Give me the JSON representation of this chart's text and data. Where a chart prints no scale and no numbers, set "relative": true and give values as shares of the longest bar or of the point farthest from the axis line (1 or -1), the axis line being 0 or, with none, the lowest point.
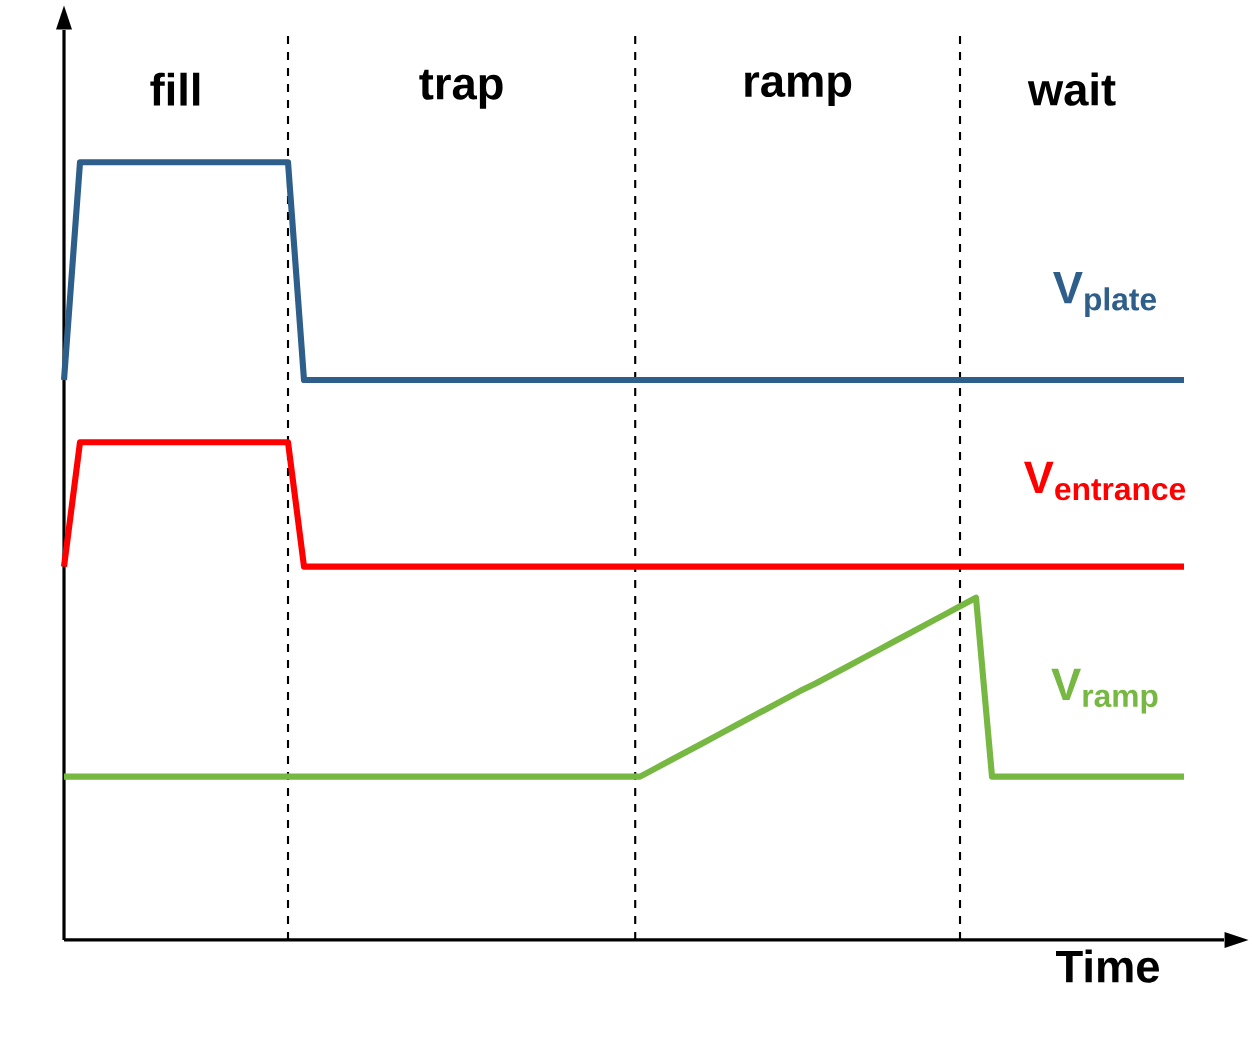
{
  "chart_data": {
    "type": "line",
    "relative": true,
    "xlabel": "Time",
    "categories": [
      null,
      null,
      null,
      null,
      null,
      null,
      null,
      null,
      null,
      null,
      null,
      null,
      null,
      null,
      null,
      null,
      null,
      null,
      null,
      null,
      null,
      null,
      null,
      null,
      null,
      null,
      null,
      null,
      null,
      null,
      null,
      null,
      null,
      null,
      null,
      null,
      null,
      null,
      null,
      null,
      null,
      null,
      null,
      null,
      null,
      null,
      null,
      null,
      null,
      null,
      null,
      null,
      null,
      null,
      null,
      null,
      null,
      null,
      null,
      null,
      null,
      null,
      null,
      null,
      null,
      null,
      null,
      null,
      null,
      null,
      null
    ],
    "series": [
      {
        "name": "V$_{plate}$",
        "color": "#2e5e8a",
        "values": [
          0.72,
          1,
          1,
          1,
          1,
          1,
          1,
          1,
          1,
          1,
          1,
          1,
          1,
          1,
          1,
          0.72,
          0.72,
          0.72,
          0.72,
          0.72,
          0.72,
          0.72,
          0.72,
          0.72,
          0.72,
          0.72,
          0.72,
          0.72,
          0.72,
          0.72,
          0.72,
          0.72,
          0.72,
          0.72,
          0.72,
          0.72,
          0.72,
          0.72,
          0.72,
          0.72,
          0.72,
          0.72,
          0.72,
          0.72,
          0.72,
          0.72,
          0.72,
          0.72,
          0.72,
          0.72,
          0.72,
          0.72,
          0.72,
          0.72,
          0.72,
          0.72,
          0.72,
          0.72,
          0.72,
          0.72,
          0.72,
          0.72,
          0.72,
          0.72,
          0.72,
          0.72,
          0.72,
          0.72,
          0.72,
          0.72,
          0.72
        ]
      },
      {
        "name": "V$_{entrance}$",
        "color": "#ff0000",
        "values": [
          0.48,
          0.64,
          0.64,
          0.64,
          0.64,
          0.64,
          0.64,
          0.64,
          0.64,
          0.64,
          0.64,
          0.64,
          0.64,
          0.64,
          0.64,
          0.48,
          0.48,
          0.48,
          0.48,
          0.48,
          0.48,
          0.48,
          0.48,
          0.48,
          0.48,
          0.48,
          0.48,
          0.48,
          0.48,
          0.48,
          0.48,
          0.48,
          0.48,
          0.48,
          0.48,
          0.48,
          0.48,
          0.48,
          0.48,
          0.48,
          0.48,
          0.48,
          0.48,
          0.48,
          0.48,
          0.48,
          0.48,
          0.48,
          0.48,
          0.48,
          0.48,
          0.48,
          0.48,
          0.48,
          0.48,
          0.48,
          0.48,
          0.48,
          0.48,
          0.48,
          0.48,
          0.48,
          0.48,
          0.48,
          0.48,
          0.48,
          0.48,
          0.48,
          0.48,
          0.48,
          0.48
        ]
      },
      {
        "name": "V$_{ramp}$",
        "color": "#77b843",
        "values": [
          0.21,
          0.21,
          0.21,
          0.21,
          0.21,
          0.21,
          0.21,
          0.21,
          0.21,
          0.21,
          0.21,
          0.21,
          0.21,
          0.21,
          0.21,
          0.21,
          0.21,
          0.21,
          0.21,
          0.21,
          0.21,
          0.21,
          0.21,
          0.21,
          0.21,
          0.21,
          0.21,
          0.21,
          0.21,
          0.21,
          0.21,
          0.21,
          0.21,
          0.21,
          0.21,
          0.21,
          0.21,
          0.221,
          0.232,
          0.243,
          0.254,
          0.265,
          0.276,
          0.287,
          0.298,
          0.309,
          0.32,
          0.33,
          0.341,
          0.352,
          0.363,
          0.374,
          0.385,
          0.396,
          0.407,
          0.418,
          0.429,
          0.44,
          0.21,
          0.21,
          0.21,
          0.21,
          0.21,
          0.21,
          0.21,
          0.21,
          0.21,
          0.21,
          0.21,
          0.21,
          0.21
        ]
      }
    ],
    "annotations": [
      "fill",
      "trap",
      "ramp",
      "wait"
    ]
  }
}
